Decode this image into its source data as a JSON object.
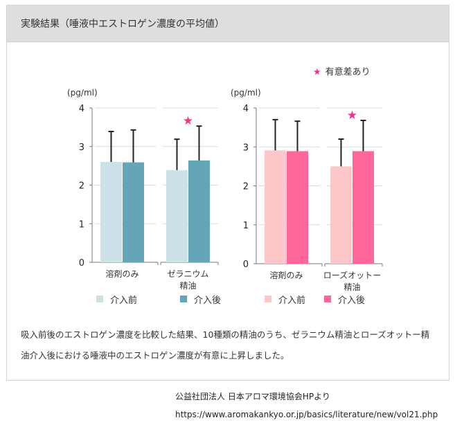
{
  "panel": {
    "title": "実験結果（唾液中エストロゲン濃度の平均値）",
    "significance_legend": {
      "icon": "star-icon",
      "label": "有意差あり",
      "color": "#f0328c"
    }
  },
  "chart_data": [
    {
      "type": "bar",
      "title": "",
      "ylabel": "(pg/ml)",
      "xlabel": "",
      "ylim": [
        0,
        4
      ],
      "yticks": [
        "0",
        "1",
        "2",
        "3",
        "4"
      ],
      "grid": true,
      "legend_position": "bottom",
      "categories": [
        [
          "溶剤のみ"
        ],
        [
          "ゼラニウム",
          "精油"
        ]
      ],
      "series": [
        {
          "name": "介入前",
          "color": "#cde1e8",
          "values": [
            2.6,
            2.39
          ],
          "error_upper": [
            3.39,
            3.19
          ]
        },
        {
          "name": "介入後",
          "color": "#64a6b8",
          "values": [
            2.59,
            2.64
          ],
          "error_upper": [
            3.43,
            3.53
          ]
        }
      ],
      "significant": [
        false,
        true
      ]
    },
    {
      "type": "bar",
      "title": "",
      "ylabel": "(pg/ml)",
      "xlabel": "",
      "ylim": [
        0,
        4
      ],
      "yticks": [
        "0",
        "1",
        "2",
        "3",
        "4"
      ],
      "grid": true,
      "legend_position": "bottom",
      "categories": [
        [
          "溶剤のみ"
        ],
        [
          "ローズオットー",
          "精油"
        ]
      ],
      "series": [
        {
          "name": "介入前",
          "color": "#fec8cb",
          "values": [
            2.91,
            2.5
          ],
          "error_upper": [
            3.7,
            3.2
          ]
        },
        {
          "name": "介入後",
          "color": "#ff6699",
          "values": [
            2.89,
            2.89
          ],
          "error_upper": [
            3.66,
            3.68
          ]
        }
      ],
      "significant": [
        false,
        true
      ]
    }
  ],
  "description": "吸入前後のエストロゲン濃度を比較した結果、10種類の精油のうち、ゼラニウム精油とローズオットー精油介入後における唾液中のエストロゲン濃度が有意に上昇しました。",
  "source": {
    "org": "公益社団法人 日本アロマ環境協会HPより",
    "url": "https://www.aromakankyo.or.jp/basics/literature/new/vol21.php"
  }
}
